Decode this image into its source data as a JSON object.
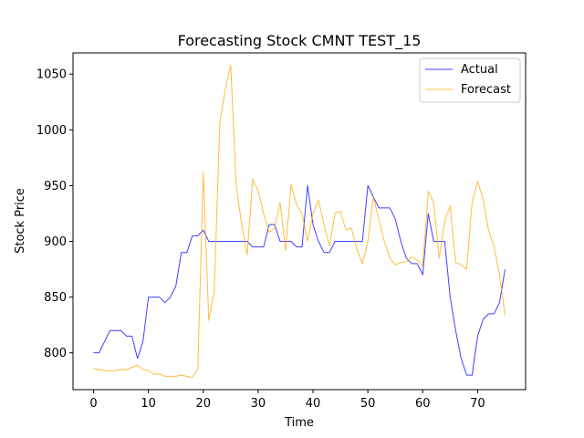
{
  "chart_data": {
    "type": "line",
    "title": "Forecasting Stock CMNT TEST_15",
    "xlabel": "Time",
    "ylabel": "Stock Price",
    "xlim": [
      -3.75,
      78.75
    ],
    "ylim": [
      767,
      1069
    ],
    "xticks": [
      0,
      10,
      20,
      30,
      40,
      50,
      60,
      70
    ],
    "yticks": [
      800,
      850,
      900,
      950,
      1000,
      1050
    ],
    "grid": false,
    "legend": "top-right",
    "x": [
      0,
      1,
      2,
      3,
      4,
      5,
      6,
      7,
      8,
      9,
      10,
      11,
      12,
      13,
      14,
      15,
      16,
      17,
      18,
      19,
      20,
      21,
      22,
      23,
      24,
      25,
      26,
      27,
      28,
      29,
      30,
      31,
      32,
      33,
      34,
      35,
      36,
      37,
      38,
      39,
      40,
      41,
      42,
      43,
      44,
      45,
      46,
      47,
      48,
      49,
      50,
      51,
      52,
      53,
      54,
      55,
      56,
      57,
      58,
      59,
      60,
      61,
      62,
      63,
      64,
      65,
      66,
      67,
      68,
      69,
      70,
      71,
      72,
      73,
      74,
      75
    ],
    "series": [
      {
        "name": "Actual",
        "color": "#0000ff",
        "values": [
          800,
          800,
          810,
          820,
          820,
          820,
          815,
          815,
          795,
          810,
          850,
          850,
          850,
          845,
          850,
          860,
          890,
          890,
          905,
          905,
          910,
          900,
          900,
          900,
          900,
          900,
          900,
          900,
          900,
          895,
          895,
          895,
          915,
          915,
          900,
          900,
          900,
          895,
          895,
          950,
          915,
          900,
          890,
          890,
          900,
          900,
          900,
          900,
          900,
          900,
          950,
          940,
          930,
          930,
          930,
          920,
          900,
          885,
          880,
          880,
          870,
          925,
          900,
          900,
          900,
          850,
          820,
          795,
          780,
          780,
          815,
          830,
          835,
          835,
          845,
          875
        ]
      },
      {
        "name": "Forecast",
        "color": "#ffa500",
        "values": [
          786,
          785,
          784,
          784,
          784,
          785,
          785,
          787,
          789,
          785,
          784,
          781,
          781,
          779,
          779,
          779,
          780,
          779,
          778,
          786,
          962,
          829,
          855,
          1006,
          1036,
          1058,
          950,
          915,
          888,
          956,
          945,
          925,
          908,
          912,
          935,
          892,
          951,
          933,
          925,
          900,
          925,
          937,
          915,
          896,
          925,
          927,
          910,
          912,
          893,
          880,
          900,
          940,
          920,
          900,
          885,
          879,
          881,
          882,
          886,
          883,
          878,
          945,
          935,
          885,
          918,
          932,
          881,
          879,
          875,
          935,
          954,
          938,
          910,
          895,
          870,
          834
        ]
      }
    ]
  }
}
